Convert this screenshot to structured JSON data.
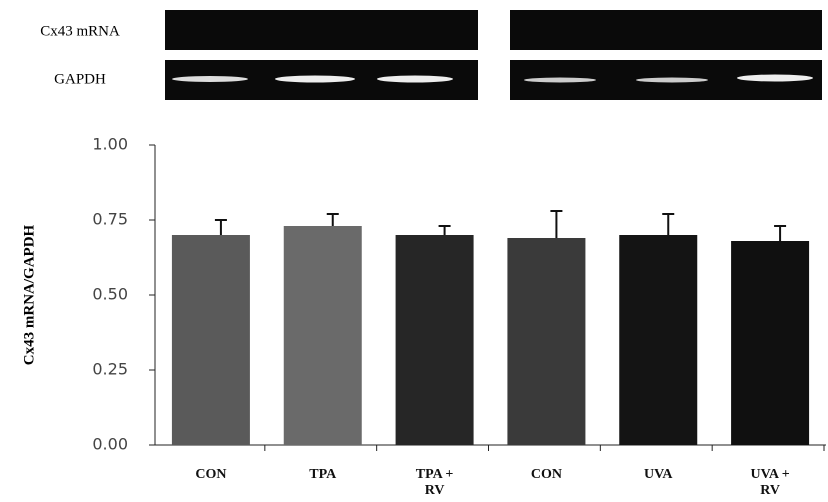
{
  "blot": {
    "labels": [
      "Cx43 mRNA",
      "GAPDH"
    ]
  },
  "chart_data": {
    "type": "bar",
    "ylabel": "Cx43 mRNA/GAPDH",
    "categories": [
      "CON",
      "TPA",
      "TPA + RV",
      "CON",
      "UVA",
      "UVA + RV"
    ],
    "series": [
      {
        "values": [
          0.7,
          0.73,
          0.7,
          0.69,
          0.7,
          0.68
        ],
        "errors": [
          0.05,
          0.04,
          0.03,
          0.09,
          0.07,
          0.05
        ],
        "colors": [
          "#5a5a5a",
          "#6a6a6a",
          "#262626",
          "#3a3a3a",
          "#141414",
          "#101010"
        ]
      }
    ],
    "ylim": [
      0,
      1
    ],
    "yticks": [
      {
        "value": 0,
        "label": "0.00"
      },
      0.25,
      {
        "value": 0.5,
        "label": "0.50"
      },
      0.75,
      {
        "value": 1,
        "label": "1.00"
      }
    ]
  }
}
